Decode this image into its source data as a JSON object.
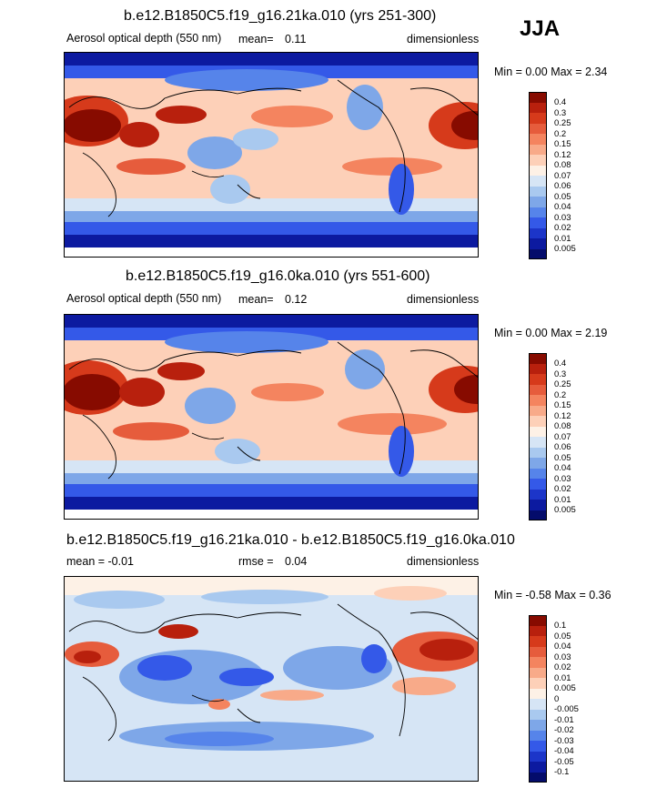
{
  "season": "JJA",
  "panels": [
    {
      "title": "b.e12.B1850C5.f19_g16.21ka.010 (yrs 251-300)",
      "left_label": "Aerosol optical depth (550 nm)",
      "mean_label": "mean=",
      "mean_value": "0.11",
      "units": "dimensionless",
      "minmax": "Min =   0.00 Max =   2.34",
      "legend_labels": [
        "0.4",
        "0.3",
        "0.25",
        "0.2",
        "0.15",
        "0.12",
        "0.08",
        "0.07",
        "0.06",
        "0.05",
        "0.04",
        "0.03",
        "0.02",
        "0.01",
        "0.005"
      ],
      "legend_colors": [
        "#870b00",
        "#b8200d",
        "#d63a1b",
        "#e65c3c",
        "#f4845f",
        "#f8aa89",
        "#fdd0b8",
        "#fdf1e6",
        "#d6e5f5",
        "#a9c9ef",
        "#7ea7e8",
        "#5684ea",
        "#3459e8",
        "#1c35c9",
        "#0c1aa0",
        "#040c6b"
      ]
    },
    {
      "title": "b.e12.B1850C5.f19_g16.0ka.010 (yrs 551-600)",
      "left_label": "Aerosol optical depth (550 nm)",
      "mean_label": "mean=",
      "mean_value": "0.12",
      "units": "dimensionless",
      "minmax": "Min =   0.00 Max =   2.19",
      "legend_labels": [
        "0.4",
        "0.3",
        "0.25",
        "0.2",
        "0.15",
        "0.12",
        "0.08",
        "0.07",
        "0.06",
        "0.05",
        "0.04",
        "0.03",
        "0.02",
        "0.01",
        "0.005"
      ],
      "legend_colors": [
        "#870b00",
        "#b8200d",
        "#d63a1b",
        "#e65c3c",
        "#f4845f",
        "#f8aa89",
        "#fdd0b8",
        "#fdf1e6",
        "#d6e5f5",
        "#a9c9ef",
        "#7ea7e8",
        "#5684ea",
        "#3459e8",
        "#1c35c9",
        "#0c1aa0",
        "#040c6b"
      ]
    },
    {
      "title": "b.e12.B1850C5.f19_g16.21ka.010 - b.e12.B1850C5.f19_g16.0ka.010",
      "left_label": "mean =  -0.01",
      "mean_label": "rmse =",
      "mean_value": "0.04",
      "units": "dimensionless",
      "minmax": "Min =  -0.58 Max =   0.36",
      "legend_labels": [
        "0.1",
        "0.05",
        "0.04",
        "0.03",
        "0.02",
        "0.01",
        "0.005",
        "0",
        "-0.005",
        "-0.01",
        "-0.02",
        "-0.03",
        "-0.04",
        "-0.05",
        "-0.1"
      ],
      "legend_colors": [
        "#870b00",
        "#b8200d",
        "#d63a1b",
        "#e65c3c",
        "#f4845f",
        "#f8aa89",
        "#fdd0b8",
        "#fdf1e6",
        "#d6e5f5",
        "#a9c9ef",
        "#7ea7e8",
        "#5684ea",
        "#3459e8",
        "#1c35c9",
        "#0c1aa0",
        "#040c6b"
      ]
    }
  ]
}
